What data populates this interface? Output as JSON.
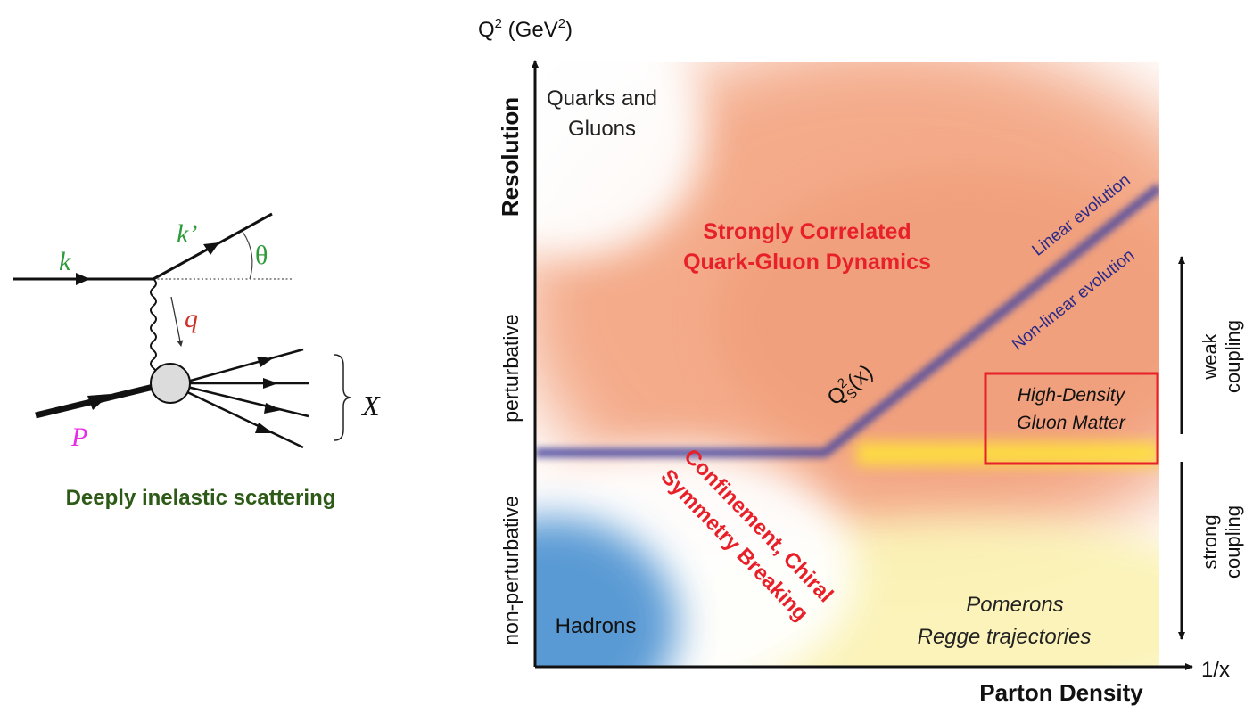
{
  "feynman": {
    "k": "k",
    "k_prime": "k’",
    "theta": "θ",
    "q": "q",
    "P": "P",
    "X": "X",
    "caption": "Deeply inelastic scattering",
    "colors": {
      "k": "#2e9a3a",
      "q": "#d0302a",
      "P": "#e62ee6",
      "caption": "#2d5a16",
      "blob": "#dcdcdc"
    }
  },
  "phase_diagram": {
    "y_axis_unit_base": "Q",
    "y_axis_unit_sup": "2",
    "y_axis_unit_mid": " (GeV",
    "y_axis_unit_sup2": "2",
    "y_axis_unit_end": ")",
    "y_axis_label": "Resolution",
    "y_regime_upper": "perturbative",
    "y_regime_lower": "non-perturbative",
    "x_axis_label": "Parton Density",
    "x_axis_unit": "1/x",
    "region_quarks_line1": "Quarks and",
    "region_quarks_line2": "Gluons",
    "region_strong_line1": "Strongly Correlated",
    "region_strong_line2": "Quark-Gluon Dynamics",
    "linear_evolution": "Linear evolution",
    "nonlinear_evolution": "Non-linear evolution",
    "saturation_base": "Q",
    "saturation_sup": "2",
    "saturation_sub": "S",
    "saturation_arg": "(x)",
    "confinement_line1": "Confinement, Chiral",
    "confinement_line2": "Symmetry Breaking",
    "high_density_line1": "High-Density",
    "high_density_line2": "Gluon Matter",
    "hadrons": "Hadrons",
    "pomerons_line1": "Pomerons",
    "pomerons_line2": "Regge trajectories",
    "coupling_weak_1": "weak",
    "coupling_weak_2": "coupling",
    "coupling_strong_1": "strong",
    "coupling_strong_2": "coupling",
    "colors": {
      "red_label": "#e8202a",
      "evolution_label": "#2a2a8a",
      "saturation_line": "#4a4aa0",
      "orange_region": "#f3a27e",
      "yellow_band": "#ffe23a",
      "blue_region": "#4a90d0",
      "box": "#e8202a"
    }
  }
}
